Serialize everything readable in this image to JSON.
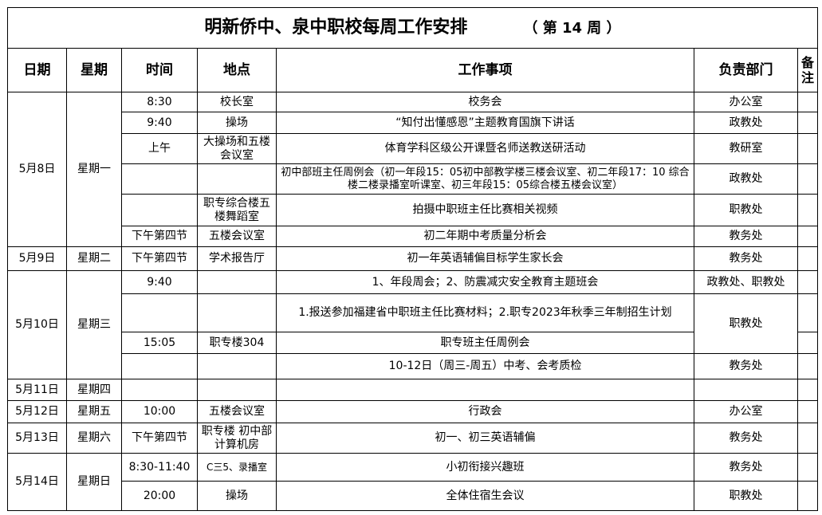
{
  "title": "明新侨中、泉中职校每周工作安排",
  "week_label": "（ 第 14 周 ）",
  "headers": {
    "date": "日期",
    "weekday": "星期",
    "time": "时间",
    "place": "地点",
    "item": "工作事项",
    "dept": "负责部门",
    "note": "备注"
  },
  "rows": [
    {
      "date": "5月8日",
      "weekday": "星期一",
      "time": "8:30",
      "place": "校长室",
      "item": "校务会",
      "dept": "办公室"
    },
    {
      "time": "9:40",
      "place": "操场",
      "item": "“知付出懂感恩”主题教育国旗下讲话",
      "dept": "政教处"
    },
    {
      "time": "上午",
      "place": "大操场和五楼会议室",
      "item": "体育学科区级公开课暨名师送教送研活动",
      "dept": "教研室"
    },
    {
      "time": "",
      "place": "",
      "item": "初中部班主任周例会（初一年段15：05初中部教学楼三楼会议室、初二年段17：10 综合楼二楼录播室听课室、初三年段15：05综合楼五楼会议室）",
      "dept": "政教处"
    },
    {
      "time": "",
      "place": "职专综合楼五楼舞蹈室",
      "item": "拍摄中职班主任比赛相关视频",
      "dept": "职教处"
    },
    {
      "time": "下午第四节",
      "place": "五楼会议室",
      "item": "初二年期中考质量分析会",
      "dept": "教务处"
    },
    {
      "date": "5月9日",
      "weekday": "星期二",
      "time": "下午第四节",
      "place": "学术报告厅",
      "item": "初一年英语辅偏目标学生家长会",
      "dept": "教务处"
    },
    {
      "date": "5月10日",
      "weekday": "星期三",
      "time": "9:40",
      "place": "",
      "item": "1、年段周会；2、防震减灾安全教育主题班会",
      "dept": "政教处、职教处"
    },
    {
      "time": "",
      "place": "",
      "item": "1.报送参加福建省中职班主任比赛材料；2.职专2023年秋季三年制招生计划",
      "dept": "职教处"
    },
    {
      "time": "15:05",
      "place": "职专楼304",
      "item": "职专班主任周例会"
    },
    {
      "time": "",
      "place": "",
      "item": "10-12日（周三-周五）中考、会考质检",
      "dept": "教务处"
    },
    {
      "date": "5月11日",
      "weekday": "星期四",
      "time": "",
      "place": "",
      "item": "",
      "dept": ""
    },
    {
      "date": "5月12日",
      "weekday": "星期五",
      "time": "10:00",
      "place": "五楼会议室",
      "item": "行政会",
      "dept": "办公室"
    },
    {
      "date": "5月13日",
      "weekday": "星期六",
      "time": "下午第四节",
      "place": "职专楼 初中部计算机房",
      "item": "初一、初三英语辅偏",
      "dept": "教务处"
    },
    {
      "date": "5月14日",
      "weekday": "星期日",
      "time": "8:30-11:40",
      "place": "C三5、录播室",
      "item": "小初衔接兴趣班",
      "dept": "教务处"
    },
    {
      "time": "20:00",
      "place": "操场",
      "item": "全体住宿生会议",
      "dept": "职教处"
    }
  ]
}
